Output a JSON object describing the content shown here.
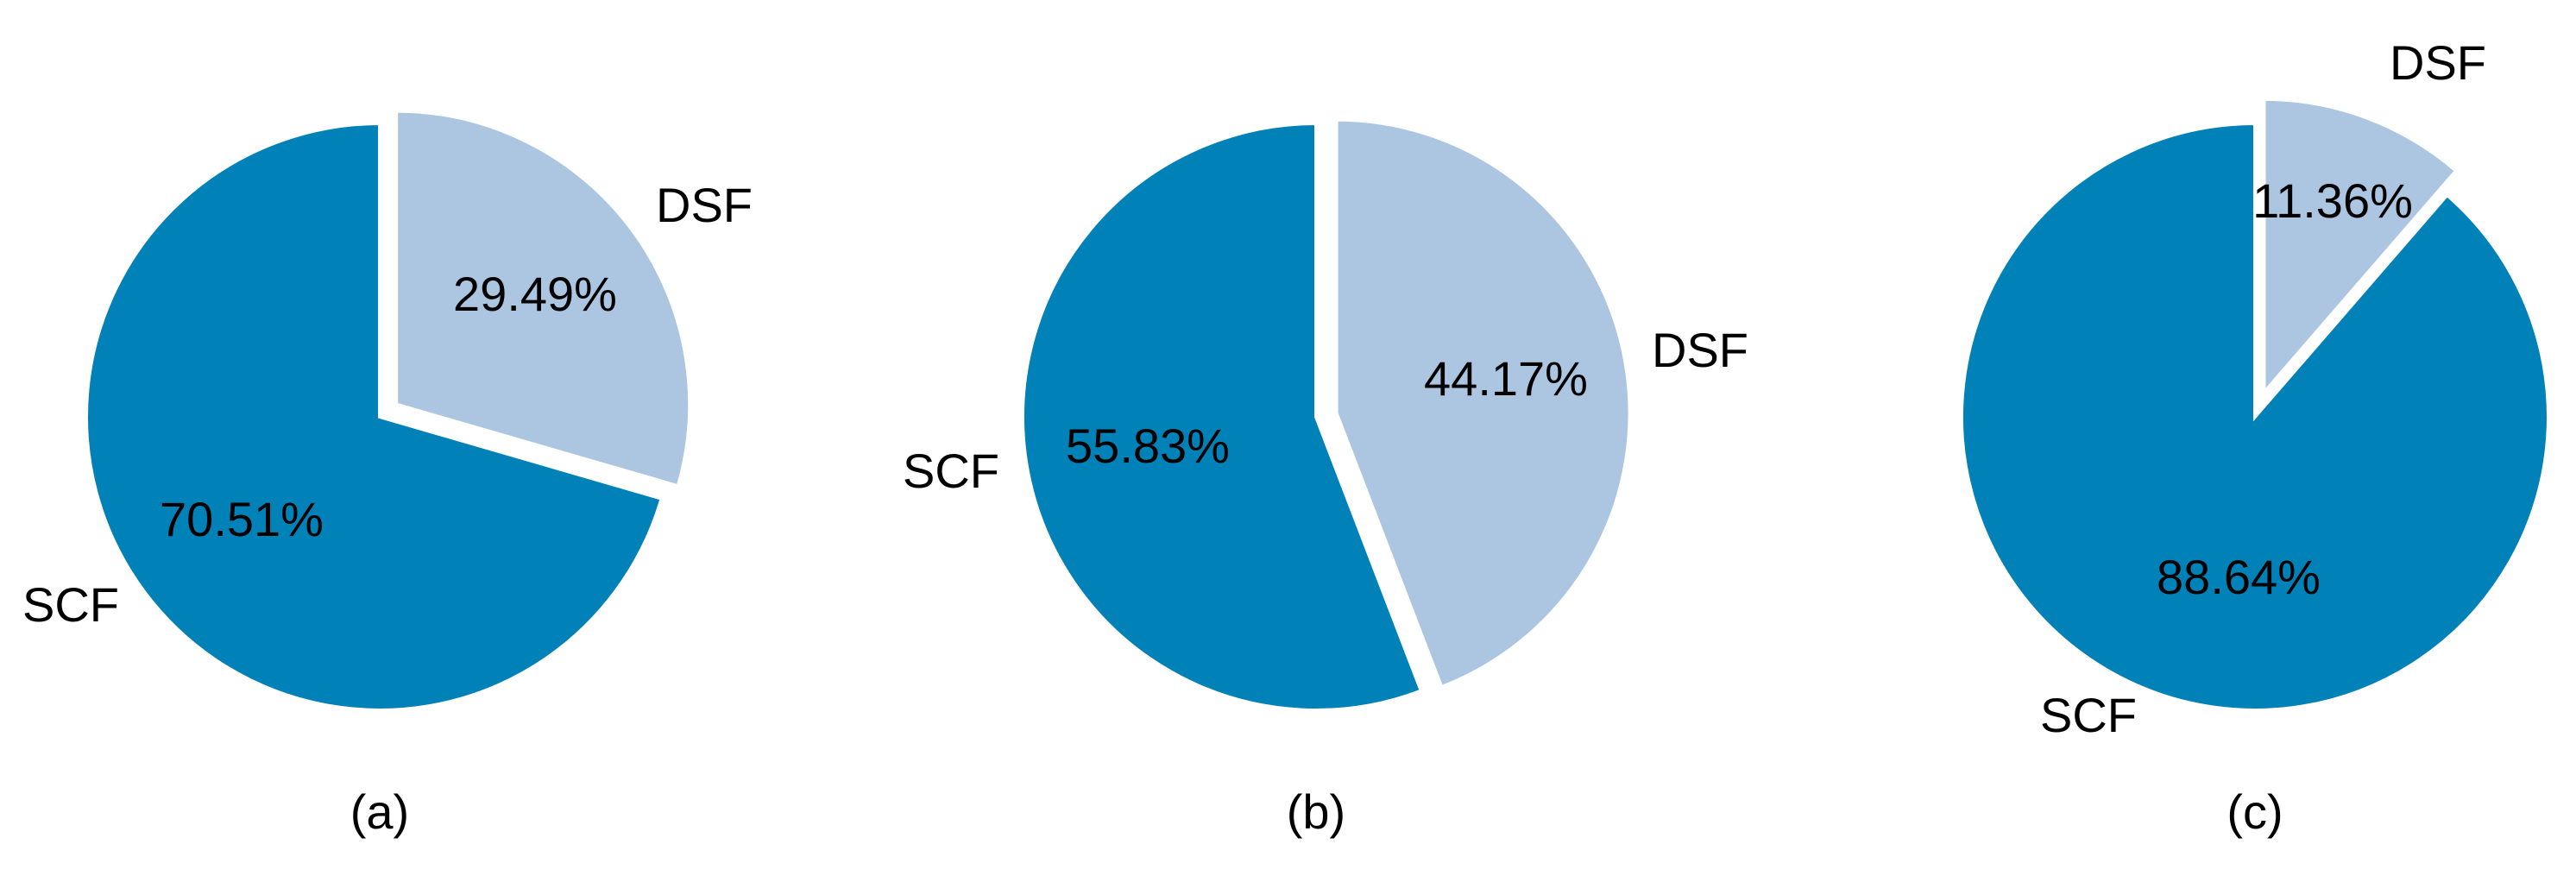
{
  "colors": {
    "SCF": "#0081B8",
    "DSF": "#ACC6E2",
    "separator": "#ffffff"
  },
  "chart_data": [
    {
      "type": "pie",
      "caption": "(a)",
      "slices": [
        {
          "label": "DSF",
          "value": 29.49,
          "value_label": "29.49%",
          "exploded": true
        },
        {
          "label": "SCF",
          "value": 70.51,
          "value_label": "70.51%",
          "exploded": false
        }
      ],
      "start_angle": "12 o'clock",
      "direction": "clockwise"
    },
    {
      "type": "pie",
      "caption": "(b)",
      "slices": [
        {
          "label": "DSF",
          "value": 44.17,
          "value_label": "44.17%",
          "exploded": true
        },
        {
          "label": "SCF",
          "value": 55.83,
          "value_label": "55.83%",
          "exploded": false
        }
      ],
      "start_angle": "12 o'clock",
      "direction": "clockwise"
    },
    {
      "type": "pie",
      "caption": "(c)",
      "slices": [
        {
          "label": "DSF",
          "value": 11.36,
          "value_label": "11.36%",
          "exploded": true
        },
        {
          "label": "SCF",
          "value": 88.64,
          "value_label": "88.64%",
          "exploded": false
        }
      ],
      "start_angle": "12 o'clock",
      "direction": "clockwise"
    }
  ]
}
